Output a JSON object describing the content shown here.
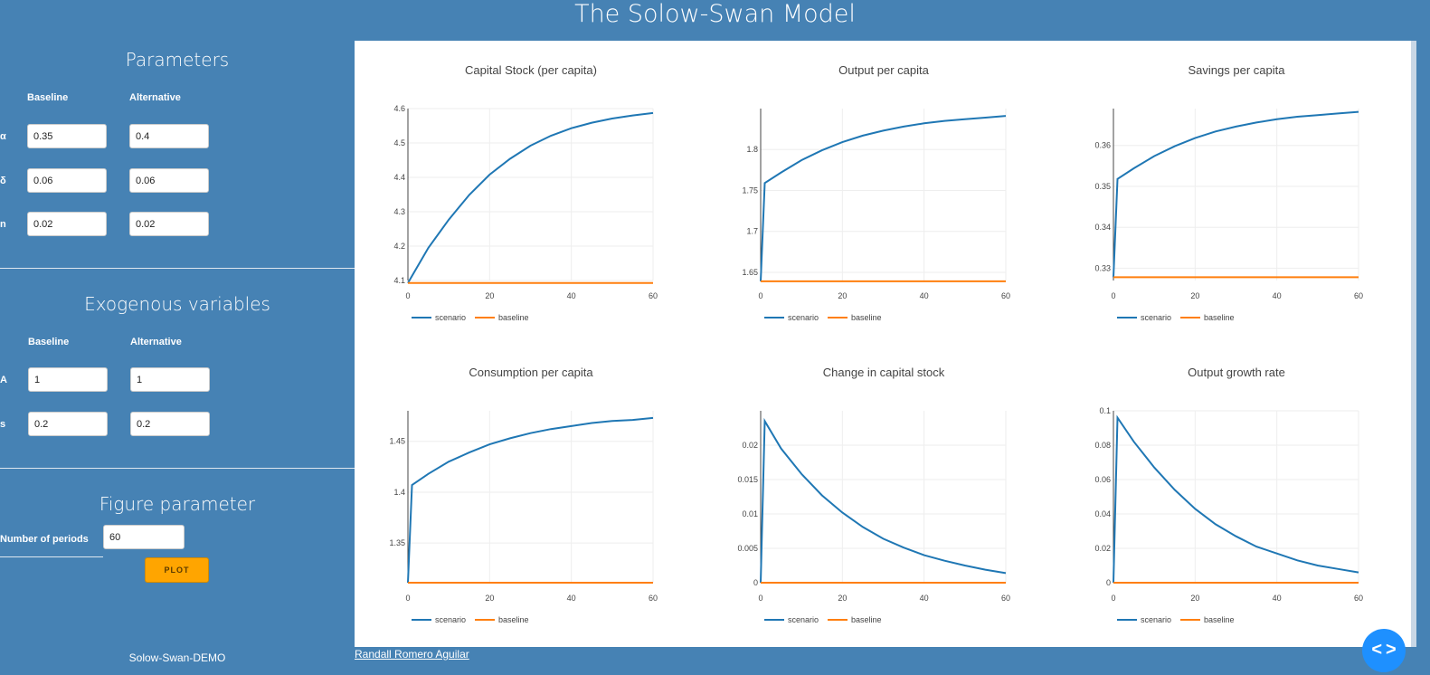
{
  "app": {
    "title": "The Solow-Swan Model"
  },
  "sidebar": {
    "parameters": {
      "title": "Parameters",
      "col_baseline": "Baseline",
      "col_alternative": "Alternative",
      "rows": [
        {
          "label": "α",
          "baseline": "0.35",
          "alternative": "0.4"
        },
        {
          "label": "δ",
          "baseline": "0.06",
          "alternative": "0.06"
        },
        {
          "label": "n",
          "baseline": "0.02",
          "alternative": "0.02"
        }
      ]
    },
    "exogenous": {
      "title": "Exogenous variables",
      "col_baseline": "Baseline",
      "col_alternative": "Alternative",
      "rows": [
        {
          "label": "A",
          "baseline": "1",
          "alternative": "1"
        },
        {
          "label": "s",
          "baseline": "0.2",
          "alternative": "0.2"
        }
      ]
    },
    "figure": {
      "title": "Figure parameter",
      "periods_label": "Number of periods",
      "periods_value": "60",
      "plot_label": "PLOT"
    },
    "footer": "Solow-Swan-DEMO"
  },
  "author_link": "Randall Romero Aguilar",
  "nav_icon": "code-toggle-icon",
  "colors": {
    "scenario": "#1f77b4",
    "baseline": "#ff7f0e",
    "background": "#4682b4",
    "button": "#ffa500"
  },
  "chart_data": [
    {
      "type": "line",
      "title": "Capital Stock (per capita)",
      "xlim": [
        0,
        60
      ],
      "ylim": [
        4.1,
        4.6
      ],
      "x_ticks": [
        "0",
        "20",
        "40",
        "60"
      ],
      "y_tick_values": [
        4.1,
        4.2,
        4.3,
        4.4,
        4.5,
        4.6
      ],
      "y_ticks": [
        "4.1",
        "4.2",
        "4.3",
        "4.4",
        "4.5",
        "4.6"
      ],
      "legend": [
        "scenario",
        "baseline"
      ],
      "series": [
        {
          "name": "scenario",
          "x": [
            0,
            5,
            10,
            15,
            20,
            25,
            30,
            35,
            40,
            45,
            50,
            55,
            60
          ],
          "y": [
            4.093,
            4.195,
            4.277,
            4.349,
            4.408,
            4.454,
            4.492,
            4.521,
            4.543,
            4.559,
            4.571,
            4.58,
            4.587
          ]
        },
        {
          "name": "baseline",
          "x": [
            0,
            60
          ],
          "y": [
            4.093,
            4.093
          ]
        }
      ]
    },
    {
      "type": "line",
      "title": "Output per capita",
      "xlim": [
        0,
        60
      ],
      "ylim": [
        1.64,
        1.85
      ],
      "x_ticks": [
        "0",
        "20",
        "40",
        "60"
      ],
      "y_tick_values": [
        1.65,
        1.7,
        1.75,
        1.8
      ],
      "y_ticks": [
        "1.65",
        "1.7",
        "1.75",
        "1.8"
      ],
      "legend": [
        "scenario",
        "baseline"
      ],
      "series": [
        {
          "name": "scenario",
          "x": [
            0,
            1,
            5,
            10,
            15,
            20,
            25,
            30,
            35,
            40,
            45,
            50,
            55,
            60
          ],
          "y": [
            1.639,
            1.759,
            1.772,
            1.787,
            1.799,
            1.809,
            1.817,
            1.823,
            1.828,
            1.832,
            1.835,
            1.837,
            1.839,
            1.841
          ]
        },
        {
          "name": "baseline",
          "x": [
            0,
            60
          ],
          "y": [
            1.639,
            1.639
          ]
        }
      ]
    },
    {
      "type": "line",
      "title": "Savings per capita",
      "xlim": [
        0,
        60
      ],
      "ylim": [
        0.327,
        0.369
      ],
      "x_ticks": [
        "0",
        "20",
        "40",
        "60"
      ],
      "y_tick_values": [
        0.33,
        0.34,
        0.35,
        0.36
      ],
      "y_ticks": [
        "0.33",
        "0.34",
        "0.35",
        "0.36"
      ],
      "legend": [
        "scenario",
        "baseline"
      ],
      "series": [
        {
          "name": "scenario",
          "x": [
            0,
            1,
            5,
            10,
            15,
            20,
            25,
            30,
            35,
            40,
            45,
            50,
            55,
            60
          ],
          "y": [
            0.3278,
            0.3518,
            0.3544,
            0.3574,
            0.3598,
            0.3618,
            0.3634,
            0.3646,
            0.3656,
            0.3664,
            0.367,
            0.3674,
            0.3678,
            0.3682
          ]
        },
        {
          "name": "baseline",
          "x": [
            0,
            60
          ],
          "y": [
            0.3278,
            0.3278
          ]
        }
      ]
    },
    {
      "type": "line",
      "title": "Consumption per capita",
      "xlim": [
        0,
        60
      ],
      "ylim": [
        1.311,
        1.48
      ],
      "x_ticks": [
        "0",
        "20",
        "40",
        "60"
      ],
      "y_tick_values": [
        1.35,
        1.4,
        1.45
      ],
      "y_ticks": [
        "1.35",
        "1.4",
        "1.45"
      ],
      "legend": [
        "scenario",
        "baseline"
      ],
      "series": [
        {
          "name": "scenario",
          "x": [
            0,
            1,
            5,
            10,
            15,
            20,
            25,
            30,
            35,
            40,
            45,
            50,
            55,
            60
          ],
          "y": [
            1.311,
            1.407,
            1.418,
            1.43,
            1.439,
            1.447,
            1.453,
            1.458,
            1.462,
            1.465,
            1.468,
            1.47,
            1.471,
            1.473
          ]
        },
        {
          "name": "baseline",
          "x": [
            0,
            60
          ],
          "y": [
            1.311,
            1.311
          ]
        }
      ]
    },
    {
      "type": "line",
      "title": "Change in capital stock",
      "xlim": [
        0,
        60
      ],
      "ylim": [
        0,
        0.025
      ],
      "x_ticks": [
        "0",
        "20",
        "40",
        "60"
      ],
      "y_tick_values": [
        0,
        0.005,
        0.01,
        0.015,
        0.02
      ],
      "y_ticks": [
        "0",
        "0.005",
        "0.01",
        "0.015",
        "0.02"
      ],
      "legend": [
        "scenario",
        "baseline"
      ],
      "series": [
        {
          "name": "scenario",
          "x": [
            0,
            1,
            5,
            10,
            15,
            20,
            25,
            30,
            35,
            40,
            45,
            50,
            55,
            60
          ],
          "y": [
            0,
            0.0235,
            0.0195,
            0.0158,
            0.0127,
            0.0102,
            0.0081,
            0.0064,
            0.0051,
            0.004,
            0.0032,
            0.0025,
            0.0019,
            0.0014
          ]
        },
        {
          "name": "baseline",
          "x": [
            0,
            60
          ],
          "y": [
            0,
            0
          ]
        }
      ]
    },
    {
      "type": "line",
      "title": "Output growth rate",
      "xlim": [
        0,
        60
      ],
      "ylim": [
        0,
        0.1
      ],
      "x_ticks": [
        "0",
        "20",
        "40",
        "60"
      ],
      "y_tick_values": [
        0,
        0.02,
        0.04,
        0.06,
        0.08,
        0.1
      ],
      "y_ticks": [
        "0",
        "0.02",
        "0.04",
        "0.06",
        "0.08",
        "0.1"
      ],
      "legend": [
        "scenario",
        "baseline"
      ],
      "series": [
        {
          "name": "scenario",
          "x": [
            0,
            1,
            5,
            10,
            15,
            20,
            25,
            30,
            35,
            40,
            45,
            50,
            55,
            60
          ],
          "y": [
            0,
            0.096,
            0.082,
            0.067,
            0.054,
            0.043,
            0.034,
            0.027,
            0.021,
            0.017,
            0.013,
            0.01,
            0.008,
            0.006
          ]
        },
        {
          "name": "baseline",
          "x": [
            0,
            60
          ],
          "y": [
            0,
            0
          ]
        }
      ]
    }
  ]
}
